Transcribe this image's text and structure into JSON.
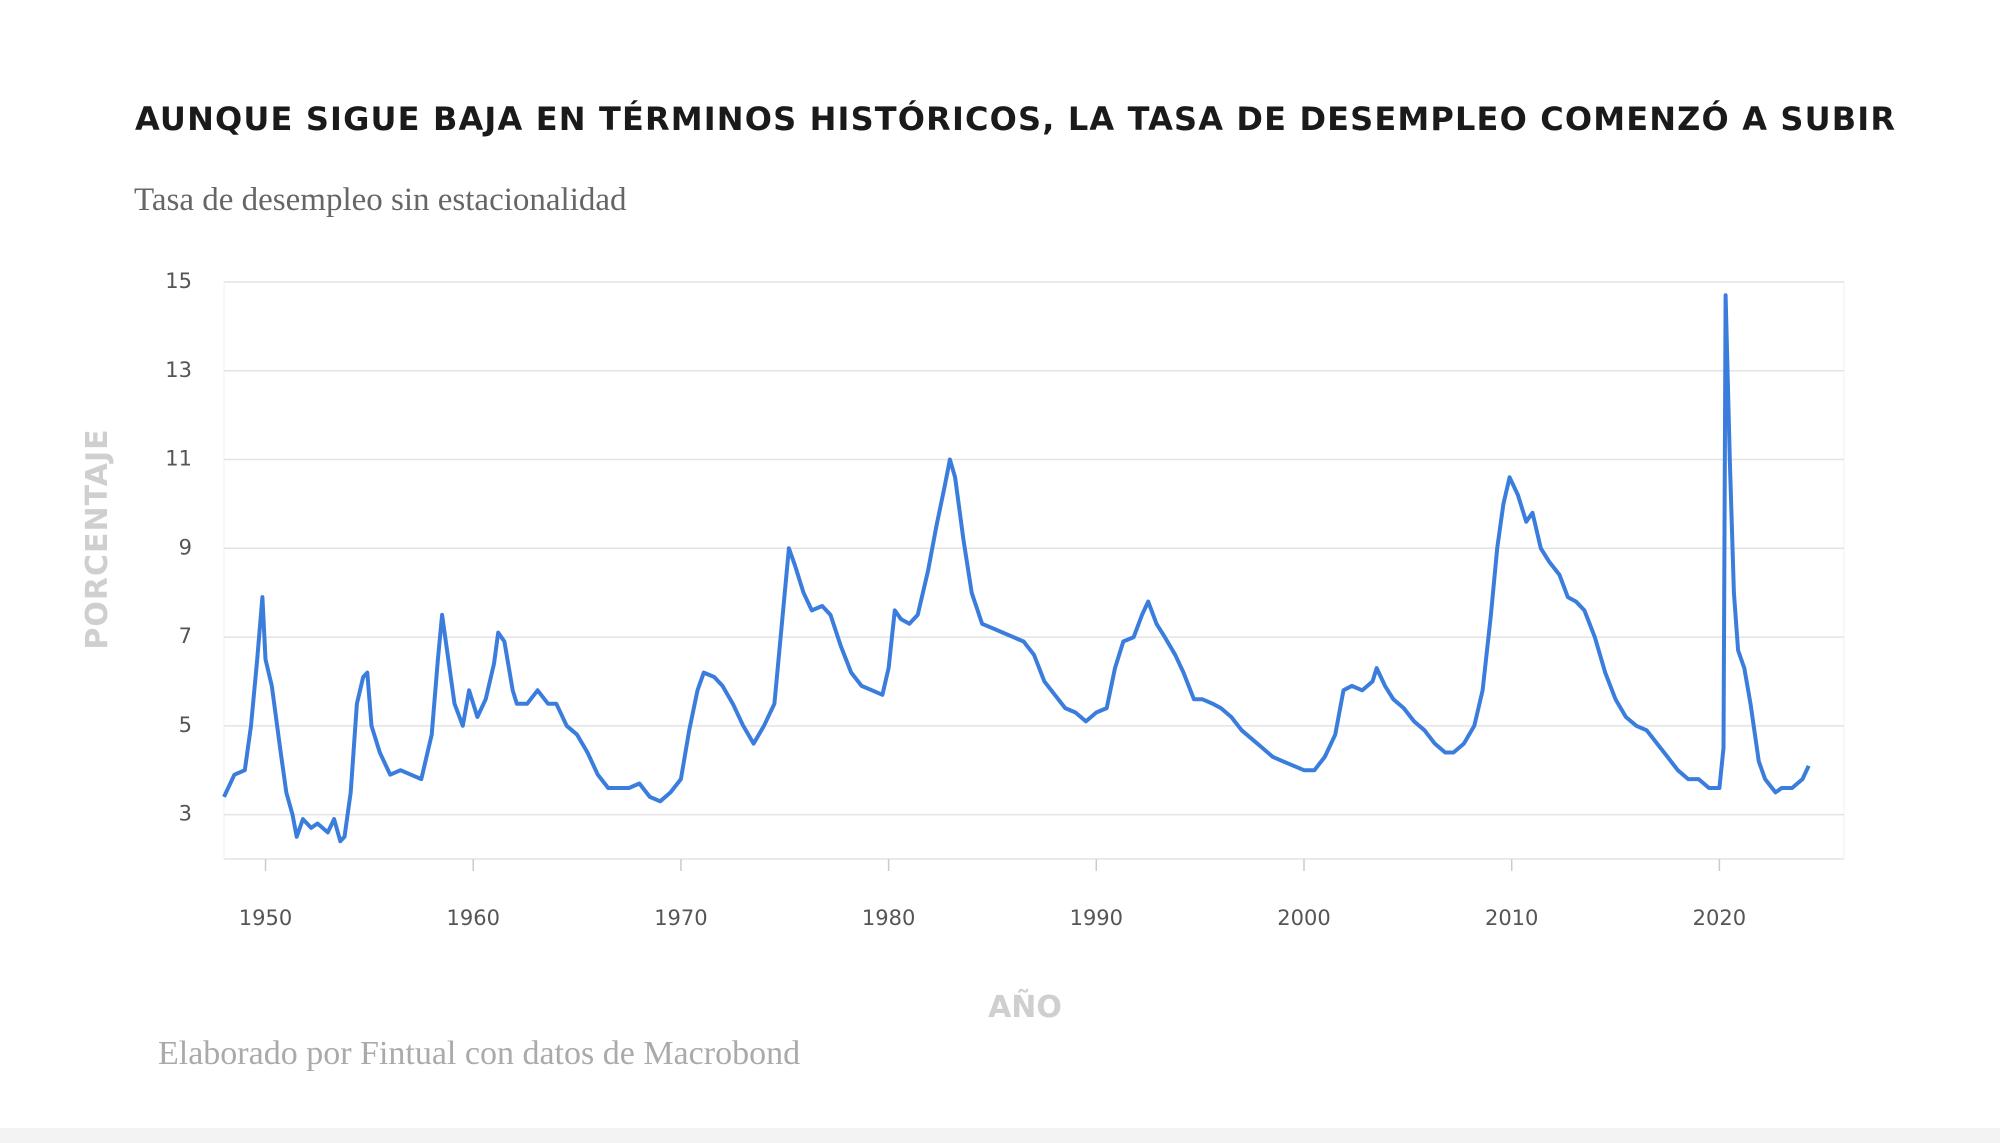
{
  "chart_data": {
    "type": "line",
    "title": "AUNQUE SIGUE BAJA EN TÉRMINOS HISTÓRICOS, LA TASA DE DESEMPLEO COMENZÓ A SUBIR",
    "subtitle": "Tasa de desempleo sin estacionalidad",
    "x_label": "AÑO",
    "y_label": "PORCENTAJE",
    "source": "Elaborado por Fintual con datos de Macrobond",
    "xlim": [
      1948,
      2026
    ],
    "xticks": [
      1950,
      1960,
      1970,
      1980,
      1990,
      2000,
      2010,
      2020
    ],
    "ylim": [
      2,
      15
    ],
    "yticks": [
      3,
      5,
      7,
      9,
      11,
      13,
      15
    ],
    "grid": true,
    "x": [
      1948.0,
      1948.5,
      1949.0,
      1949.3,
      1949.6,
      1949.85,
      1950.0,
      1950.3,
      1950.7,
      1951.0,
      1951.3,
      1951.5,
      1951.8,
      1952.2,
      1952.5,
      1953.0,
      1953.3,
      1953.6,
      1953.8,
      1954.1,
      1954.4,
      1954.7,
      1954.9,
      1955.1,
      1955.5,
      1956.0,
      1956.5,
      1957.0,
      1957.5,
      1958.0,
      1958.3,
      1958.5,
      1958.8,
      1959.1,
      1959.5,
      1959.8,
      1960.2,
      1960.6,
      1961.0,
      1961.2,
      1961.5,
      1961.9,
      1962.1,
      1962.6,
      1963.1,
      1963.6,
      1964.0,
      1964.5,
      1965.0,
      1965.5,
      1966.0,
      1966.5,
      1967.0,
      1967.5,
      1968.0,
      1968.5,
      1969.0,
      1969.5,
      1970.0,
      1970.4,
      1970.8,
      1971.1,
      1971.6,
      1972.0,
      1972.5,
      1973.0,
      1973.5,
      1974.0,
      1974.5,
      1974.9,
      1975.2,
      1975.5,
      1975.9,
      1976.3,
      1976.8,
      1977.2,
      1977.7,
      1978.2,
      1978.7,
      1979.2,
      1979.7,
      1980.0,
      1980.3,
      1980.6,
      1981.0,
      1981.4,
      1981.9,
      1982.3,
      1982.7,
      1982.95,
      1983.2,
      1983.6,
      1984.0,
      1984.5,
      1985.0,
      1985.5,
      1986.0,
      1986.5,
      1987.0,
      1987.5,
      1988.0,
      1988.5,
      1989.0,
      1989.5,
      1990.0,
      1990.5,
      1990.9,
      1991.3,
      1991.8,
      1992.2,
      1992.5,
      1992.9,
      1993.3,
      1993.8,
      1994.2,
      1994.7,
      1995.1,
      1995.6,
      1996.0,
      1996.5,
      1997.0,
      1997.5,
      1998.0,
      1998.5,
      1999.0,
      1999.5,
      2000.0,
      2000.5,
      2001.0,
      2001.5,
      2001.9,
      2002.3,
      2002.8,
      2003.3,
      2003.5,
      2003.9,
      2004.3,
      2004.8,
      2005.3,
      2005.8,
      2006.3,
      2006.8,
      2007.2,
      2007.7,
      2008.2,
      2008.6,
      2009.0,
      2009.3,
      2009.6,
      2009.9,
      2010.3,
      2010.7,
      2011.0,
      2011.4,
      2011.8,
      2012.3,
      2012.7,
      2013.1,
      2013.5,
      2014.0,
      2014.5,
      2015.0,
      2015.5,
      2016.0,
      2016.5,
      2017.0,
      2017.5,
      2018.0,
      2018.5,
      2019.0,
      2019.5,
      2020.0,
      2020.2,
      2020.3,
      2020.5,
      2020.7,
      2020.9,
      2021.2,
      2021.5,
      2021.9,
      2022.2,
      2022.7,
      2023.0,
      2023.5,
      2024.0,
      2024.3
    ],
    "series": [
      {
        "name": "Tasa de desempleo",
        "color": "#3b7ddd",
        "values": [
          3.4,
          3.9,
          4.0,
          5.0,
          6.5,
          7.9,
          6.5,
          5.9,
          4.5,
          3.5,
          3.0,
          2.5,
          2.9,
          2.7,
          2.8,
          2.6,
          2.9,
          2.4,
          2.5,
          3.5,
          5.5,
          6.1,
          6.2,
          5.0,
          4.4,
          3.9,
          4.0,
          3.9,
          3.8,
          4.8,
          6.5,
          7.5,
          6.5,
          5.5,
          5.0,
          5.8,
          5.2,
          5.6,
          6.4,
          7.1,
          6.9,
          5.8,
          5.5,
          5.5,
          5.8,
          5.5,
          5.5,
          5.0,
          4.8,
          4.4,
          3.9,
          3.6,
          3.6,
          3.6,
          3.7,
          3.4,
          3.3,
          3.5,
          3.8,
          4.9,
          5.8,
          6.2,
          6.1,
          5.9,
          5.5,
          5.0,
          4.6,
          5.0,
          5.5,
          7.5,
          9.0,
          8.6,
          8.0,
          7.6,
          7.7,
          7.5,
          6.8,
          6.2,
          5.9,
          5.8,
          5.7,
          6.3,
          7.6,
          7.4,
          7.3,
          7.5,
          8.5,
          9.5,
          10.4,
          11.0,
          10.6,
          9.2,
          8.0,
          7.3,
          7.2,
          7.1,
          7.0,
          6.9,
          6.6,
          6.0,
          5.7,
          5.4,
          5.3,
          5.1,
          5.3,
          5.4,
          6.3,
          6.9,
          7.0,
          7.5,
          7.8,
          7.3,
          7.0,
          6.6,
          6.2,
          5.6,
          5.6,
          5.5,
          5.4,
          5.2,
          4.9,
          4.7,
          4.5,
          4.3,
          4.2,
          4.1,
          4.0,
          4.0,
          4.3,
          4.8,
          5.8,
          5.9,
          5.8,
          6.0,
          6.3,
          5.9,
          5.6,
          5.4,
          5.1,
          4.9,
          4.6,
          4.4,
          4.4,
          4.6,
          5.0,
          5.8,
          7.5,
          9.0,
          10.0,
          10.6,
          10.2,
          9.6,
          9.8,
          9.0,
          8.7,
          8.4,
          7.9,
          7.8,
          7.6,
          7.0,
          6.2,
          5.6,
          5.2,
          5.0,
          4.9,
          4.6,
          4.3,
          4.0,
          3.8,
          3.8,
          3.6,
          3.6,
          4.5,
          14.7,
          11.0,
          8.0,
          6.7,
          6.3,
          5.5,
          4.2,
          3.8,
          3.5,
          3.6,
          3.6,
          3.8,
          4.1
        ]
      }
    ]
  }
}
